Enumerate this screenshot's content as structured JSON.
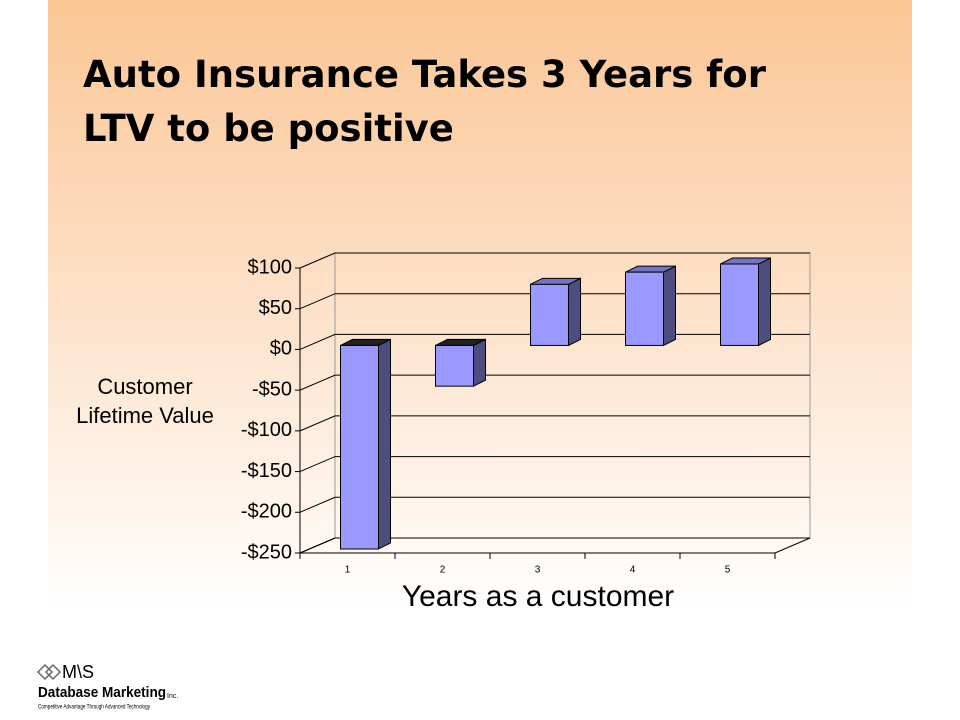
{
  "chart_data": {
    "type": "bar3d",
    "title": "Auto Insurance Takes 3 Years for LTV to be positive",
    "x_label": "Years as a customer",
    "y_label": "Customer Lifetime Value",
    "categories": [
      "1",
      "2",
      "3",
      "4",
      "5"
    ],
    "values": [
      -250,
      -50,
      75,
      90,
      100
    ],
    "color": "#9999ff",
    "ylim": [
      -250,
      100
    ],
    "yticks": [
      {
        "value": -250,
        "label": "-$250"
      },
      {
        "value": -200,
        "label": "-$200"
      },
      {
        "value": -150,
        "label": "-$150"
      },
      {
        "value": -100,
        "label": "-$100"
      },
      {
        "value": -50,
        "label": "-$50"
      },
      {
        "value": 0,
        "label": "$0"
      },
      {
        "value": 50,
        "label": "$50"
      },
      {
        "value": 100,
        "label": "$100"
      }
    ],
    "grid": true
  },
  "logo": {
    "mark": "M\\S",
    "name": "Database Marketing",
    "suffix": "Inc.",
    "tagline": "Competitive Advantage Through Advanced Technology"
  }
}
